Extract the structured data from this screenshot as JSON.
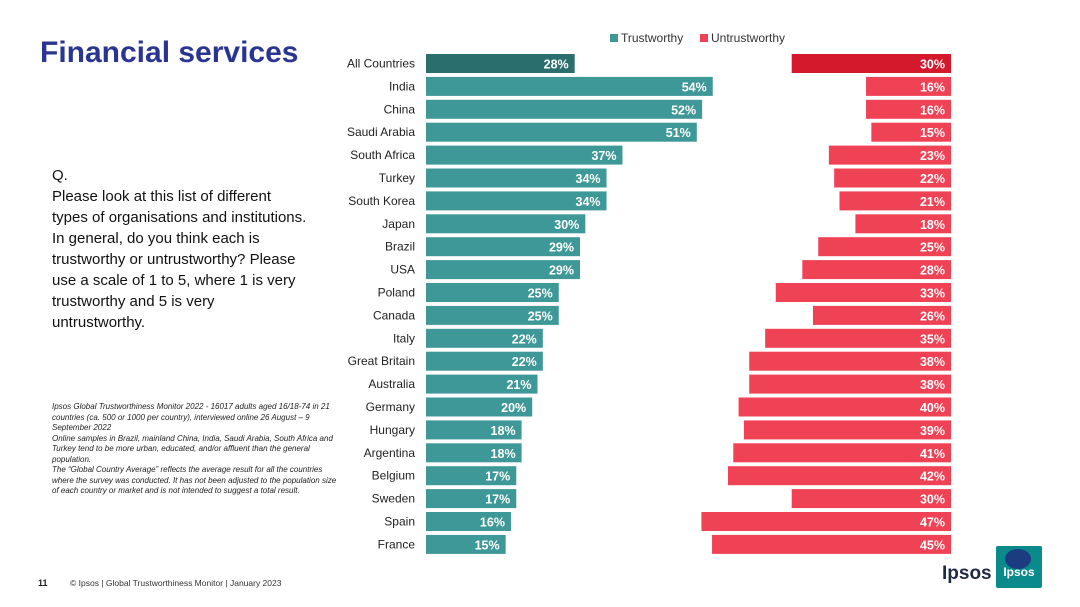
{
  "title": "Financial services",
  "question": {
    "label": "Q.",
    "text": "Please look at this list of different types of organisations and institutions. In general, do you think each is trustworthy or untrustworthy? Please use a scale of 1 to 5, where 1 is very trustworthy and 5 is very untrustworthy."
  },
  "footnote": {
    "line1": "Ipsos Global Trustworthiness Monitor 2022 - 16017 adults aged 16/18-74 in 21 countries (ca. 500 or 1000 per country), interviewed online 26 August – 9 September 2022",
    "line2": "Online samples in Brazil, mainland China, India, Saudi Arabia, South Africa and Turkey tend to be more urban, educated, and/or affluent than the general population.",
    "line3": "The “Global Country Average” reflects the average result for all the countries where the survey was conducted. It has not been adjusted to the population size of each country or market and is not intended to suggest a total result."
  },
  "footer": {
    "page_number": "11",
    "text": "© Ipsos | Global Trustworthiness Monitor | January 2023",
    "brand": "Ipsos",
    "logo_text": "Ipsos"
  },
  "colors": {
    "trust": "#3f9898",
    "trust_highlight": "#2b6e6e",
    "untrust": "#ef4255",
    "untrust_highlight": "#d4192c",
    "title": "#2a3593"
  },
  "chart_data": {
    "type": "bar",
    "orientation": "horizontal",
    "legend_position": "top",
    "categories": [
      "All Countries",
      "India",
      "China",
      "Saudi Arabia",
      "South Africa",
      "Turkey",
      "South Korea",
      "Japan",
      "Brazil",
      "USA",
      "Poland",
      "Canada",
      "Italy",
      "Great Britain",
      "Australia",
      "Germany",
      "Hungary",
      "Argentina",
      "Belgium",
      "Sweden",
      "Spain",
      "France"
    ],
    "series": [
      {
        "name": "Trustworthy",
        "values": [
          28,
          54,
          52,
          51,
          37,
          34,
          34,
          30,
          29,
          29,
          25,
          25,
          22,
          22,
          21,
          20,
          18,
          18,
          17,
          17,
          16,
          15
        ],
        "labels": [
          "28%",
          "54%",
          "52%",
          "51%",
          "37%",
          "34%",
          "34%",
          "30%",
          "29%",
          "29%",
          "25%",
          "25%",
          "22%",
          "22%",
          "21%",
          "20%",
          "18%",
          "18%",
          "17%",
          "17%",
          "16%",
          "15%"
        ]
      },
      {
        "name": "Untrustworthy",
        "values": [
          30,
          16,
          16,
          15,
          23,
          22,
          21,
          18,
          25,
          28,
          33,
          26,
          35,
          38,
          38,
          40,
          39,
          41,
          42,
          30,
          47,
          45
        ],
        "labels": [
          "30%",
          "16%",
          "16%",
          "15%",
          "23%",
          "22%",
          "21%",
          "18%",
          "25%",
          "28%",
          "33%",
          "26%",
          "35%",
          "38%",
          "38%",
          "40%",
          "39%",
          "41%",
          "42%",
          "30%",
          "47%",
          "45%"
        ]
      }
    ],
    "xlim": [
      0,
      100
    ]
  }
}
